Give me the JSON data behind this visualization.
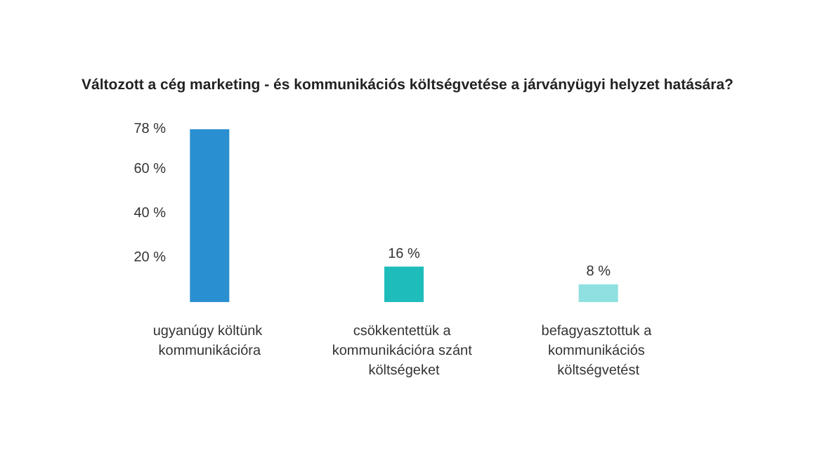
{
  "chart_data": {
    "type": "bar",
    "title": "Változott a cég marketing - és kommunikációs költségvetése a járványügyi helyzet hatására?",
    "categories": [
      "ugyanúgy költünk kommunikációra",
      "csökkentettük a kommunikációra szánt költségeket",
      "befagyasztottuk a kommunikációs költségvetést"
    ],
    "values": [
      78,
      16,
      8
    ],
    "colors": [
      "#2a8fd0",
      "#1fbcbc",
      "#8fe0e0"
    ],
    "value_labels": [
      null,
      "16 %",
      "8 %"
    ],
    "ylim": [
      0,
      78
    ],
    "yticks": [
      {
        "value": 20,
        "label": "20 %"
      },
      {
        "value": 40,
        "label": "40 %"
      },
      {
        "value": 60,
        "label": "60 %"
      },
      {
        "value": 78,
        "label": "78 %"
      }
    ],
    "grid": false
  }
}
